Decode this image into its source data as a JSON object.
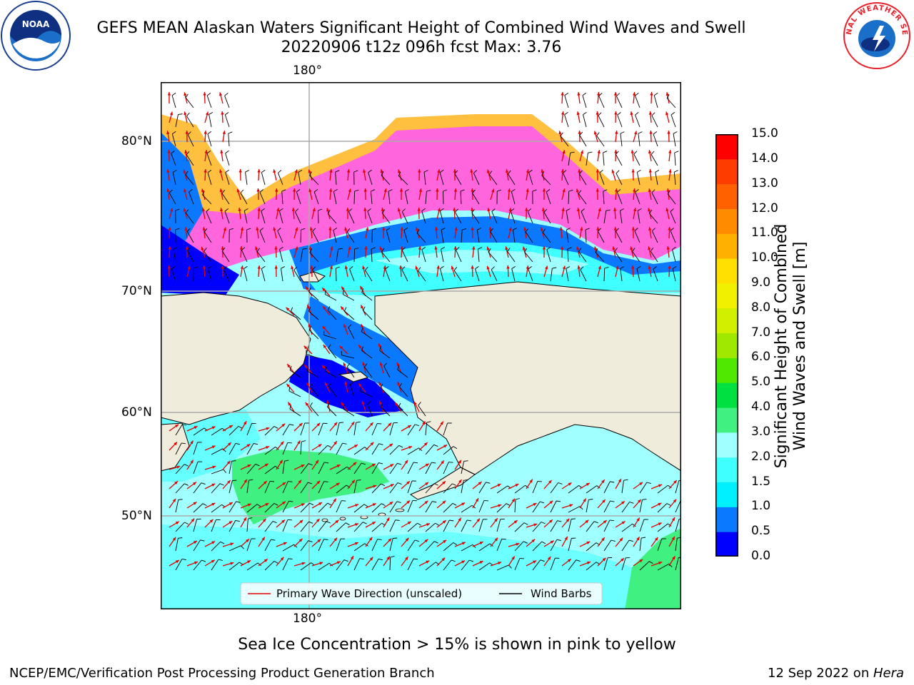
{
  "header": {
    "title_line1": "GEFS MEAN Alaskan Waters Significant Height of Combined Wind Waves and Swell",
    "title_line2": "20220906 t12z 096h fcst   Max: 3.76"
  },
  "logos": {
    "left": {
      "icon": "noaa-logo-icon",
      "text": "NOAA",
      "color": "#1a3f8f"
    },
    "right": {
      "icon": "nws-logo-icon",
      "text": "NATIONAL WEATHER SERVICE",
      "color": "#e8202a"
    }
  },
  "map": {
    "lat_labels": [
      "80°N",
      "70°N",
      "60°N",
      "50°N"
    ],
    "lon_label_top": "180°",
    "lon_label_bottom": "180°",
    "land_color": "#efecdc",
    "legend": {
      "wave_label": "Primary Wave Direction (unscaled)",
      "wave_color": "#e00000",
      "barb_label": "Wind Barbs",
      "barb_color": "#000000"
    }
  },
  "colorbar": {
    "label_line1": "Significant Height of Combined",
    "label_line2": "Wind Waves and Swell [m]",
    "ticks": [
      "0.0",
      "0.5",
      "1.0",
      "1.5",
      "2.0",
      "3.0",
      "4.0",
      "5.0",
      "6.0",
      "7.0",
      "8.0",
      "9.0",
      "10.0",
      "11.0",
      "12.0",
      "13.0",
      "14.0",
      "15.0"
    ],
    "colors": [
      "#0000ff",
      "#0a78ff",
      "#00f0ff",
      "#40ffff",
      "#a0ffff",
      "#40f080",
      "#00e040",
      "#50e800",
      "#a0e800",
      "#d0f000",
      "#f0f000",
      "#ffe000",
      "#ffb000",
      "#ff8c00",
      "#ff6000",
      "#ff3c00",
      "#ff0000"
    ]
  },
  "note": "Sea Ice Concentration > 15% is shown in pink to yellow",
  "footer": {
    "left": "NCEP/EMC/Verification Post Processing Product Generation Branch",
    "right_prefix": "12 Sep 2022 on ",
    "right_host": "Hera"
  }
}
